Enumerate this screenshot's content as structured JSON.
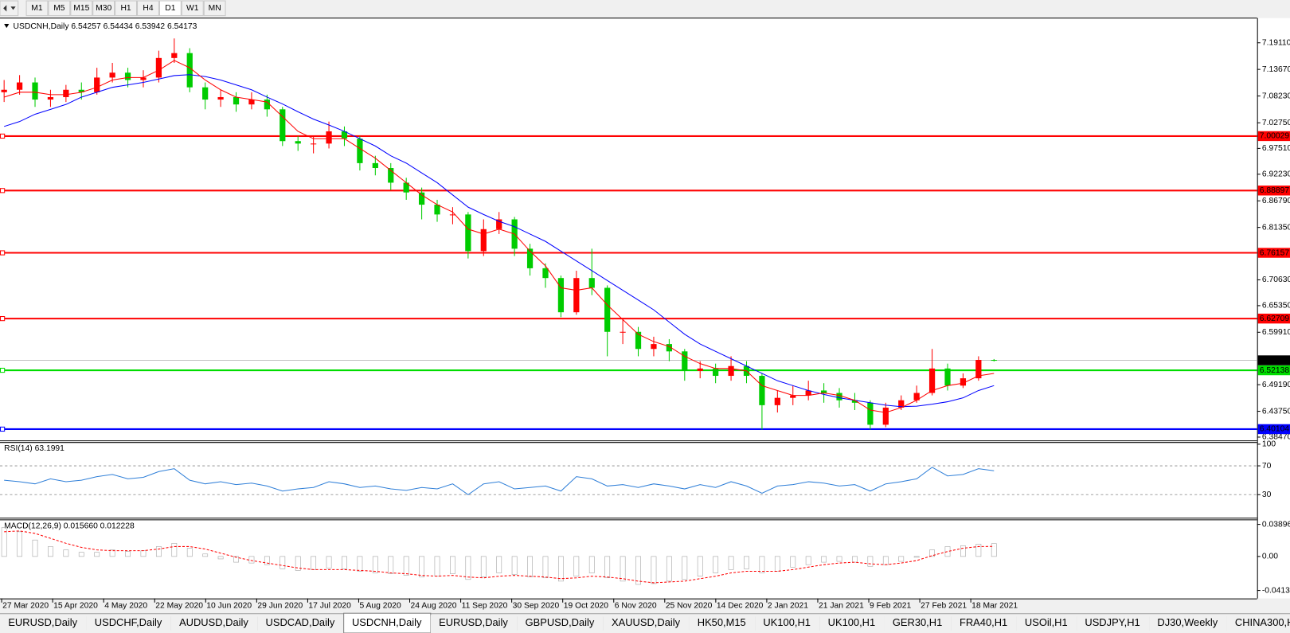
{
  "toolbar": {
    "timeframes": [
      "M1",
      "M5",
      "M15",
      "M30",
      "H1",
      "H4",
      "D1",
      "W1",
      "MN"
    ]
  },
  "tabs": {
    "items": [
      "EURUSD,Daily",
      "USDCHF,Daily",
      "AUDUSD,Daily",
      "USDCAD,Daily",
      "USDCNH,Daily",
      "EURUSD,Daily",
      "GBPUSD,Daily",
      "XAUUSD,Daily",
      "HK50,M15",
      "UK100,H1",
      "UK100,H1",
      "GER30,H1",
      "FRA40,H1",
      "USOil,H1",
      "USDJPY,H1",
      "DJ30,Weekly",
      "CHINA300,H1"
    ],
    "active": 4
  },
  "chart_data": [
    {
      "type": "candlestick",
      "symbol": "USDCNH,Daily",
      "open": [
        7.09,
        7.095,
        7.11,
        7.075,
        7.08,
        7.095,
        7.09,
        7.12,
        7.13,
        7.115,
        7.12,
        7.16,
        7.17,
        7.1,
        7.075,
        7.08,
        7.065,
        7.075,
        7.055,
        6.99,
        6.985,
        6.985,
        7.01,
        6.995,
        6.945,
        6.935,
        6.905,
        6.885,
        6.86,
        6.84,
        6.84,
        6.765,
        6.81,
        6.83,
        6.77,
        6.73,
        6.71,
        6.64,
        6.71,
        6.69,
        6.6,
        6.6,
        6.565,
        6.575,
        6.56,
        6.52,
        6.525,
        6.51,
        6.53,
        6.51,
        6.45,
        6.465,
        6.47,
        6.48,
        6.475,
        6.46,
        6.455,
        6.41,
        6.445,
        6.46,
        6.475,
        6.525,
        6.49,
        6.505,
        6.54257
      ],
      "high": [
        7.115,
        7.125,
        7.12,
        7.095,
        7.105,
        7.11,
        7.14,
        7.15,
        7.14,
        7.135,
        7.175,
        7.2,
        7.18,
        7.11,
        7.095,
        7.09,
        7.09,
        7.085,
        7.06,
        7.0,
        7.0,
        7.03,
        7.02,
        7.0,
        6.96,
        6.945,
        6.915,
        6.895,
        6.87,
        6.855,
        6.845,
        6.83,
        6.845,
        6.835,
        6.78,
        6.74,
        6.715,
        6.725,
        6.77,
        6.695,
        6.625,
        6.61,
        6.59,
        6.585,
        6.565,
        6.54,
        6.535,
        6.55,
        6.54,
        6.515,
        6.48,
        6.49,
        6.5,
        6.495,
        6.485,
        6.475,
        6.46,
        6.455,
        6.47,
        6.49,
        6.565,
        6.535,
        6.515,
        6.55,
        6.54434
      ],
      "low": [
        7.07,
        7.085,
        7.06,
        7.06,
        7.07,
        7.075,
        7.085,
        7.11,
        7.1,
        7.1,
        7.11,
        7.15,
        7.09,
        7.055,
        7.06,
        7.05,
        7.055,
        7.04,
        6.98,
        6.97,
        6.965,
        6.975,
        6.98,
        6.93,
        6.92,
        6.89,
        6.87,
        6.83,
        6.825,
        6.82,
        6.75,
        6.755,
        6.8,
        6.755,
        6.715,
        6.69,
        6.63,
        6.635,
        6.675,
        6.55,
        6.575,
        6.55,
        6.55,
        6.54,
        6.5,
        6.505,
        6.495,
        6.5,
        6.495,
        6.4,
        6.435,
        6.45,
        6.46,
        6.455,
        6.445,
        6.44,
        6.4,
        6.405,
        6.44,
        6.455,
        6.47,
        6.48,
        6.485,
        6.5,
        6.53942
      ],
      "close": [
        7.095,
        7.11,
        7.075,
        7.08,
        7.095,
        7.09,
        7.12,
        7.13,
        7.115,
        7.12,
        7.16,
        7.17,
        7.1,
        7.075,
        7.08,
        7.065,
        7.075,
        7.055,
        6.99,
        6.985,
        6.985,
        7.01,
        6.995,
        6.945,
        6.935,
        6.905,
        6.885,
        6.86,
        6.84,
        6.84,
        6.765,
        6.81,
        6.83,
        6.77,
        6.73,
        6.71,
        6.64,
        6.71,
        6.69,
        6.6,
        6.6,
        6.565,
        6.575,
        6.56,
        6.52,
        6.525,
        6.51,
        6.53,
        6.51,
        6.45,
        6.465,
        6.47,
        6.48,
        6.475,
        6.46,
        6.455,
        6.41,
        6.445,
        6.46,
        6.475,
        6.525,
        6.49,
        6.505,
        6.5426,
        6.54173
      ],
      "up_color": "#ff0000",
      "down_color": "#00cc00",
      "overlays": [
        {
          "color": "#0000ff",
          "values": [
            7.02,
            7.03,
            7.045,
            7.055,
            7.065,
            7.08,
            7.09,
            7.1,
            7.105,
            7.11,
            7.117,
            7.124,
            7.126,
            7.122,
            7.115,
            7.105,
            7.095,
            7.08,
            7.066,
            7.05,
            7.035,
            7.023,
            7.01,
            6.995,
            6.98,
            6.96,
            6.945,
            6.925,
            6.905,
            6.88,
            6.855,
            6.84,
            6.826,
            6.815,
            6.8,
            6.785,
            6.765,
            6.745,
            6.725,
            6.705,
            6.685,
            6.665,
            6.645,
            6.62,
            6.595,
            6.575,
            6.56,
            6.545,
            6.53,
            6.515,
            6.5,
            6.49,
            6.48,
            6.472,
            6.465,
            6.46,
            6.455,
            6.45,
            6.447,
            6.448,
            6.452,
            6.457,
            6.465,
            6.48,
            6.49
          ]
        },
        {
          "color": "#ff0000",
          "values": [
            7.08,
            7.09,
            7.09,
            7.085,
            7.085,
            7.09,
            7.1,
            7.115,
            7.12,
            7.12,
            7.135,
            7.155,
            7.14,
            7.115,
            7.095,
            7.08,
            7.075,
            7.07,
            7.04,
            7.01,
            6.995,
            6.995,
            6.995,
            6.975,
            6.955,
            6.93,
            6.905,
            6.88,
            6.86,
            6.845,
            6.81,
            6.8,
            6.81,
            6.8,
            6.765,
            6.735,
            6.69,
            6.685,
            6.69,
            6.655,
            6.625,
            6.595,
            6.58,
            6.57,
            6.55,
            6.535,
            6.525,
            6.525,
            6.52,
            6.49,
            6.48,
            6.47,
            6.47,
            6.475,
            6.47,
            6.46,
            6.44,
            6.435,
            6.445,
            6.46,
            6.48,
            6.49,
            6.495,
            6.51,
            6.515
          ]
        }
      ],
      "levels": [
        {
          "value": 7.00029,
          "color": "#ff0000"
        },
        {
          "value": 6.88897,
          "color": "#ff0000"
        },
        {
          "value": 6.76157,
          "color": "#ff0000"
        },
        {
          "value": 6.62709,
          "color": "#ff0000"
        },
        {
          "value": 6.52138,
          "color": "#00dd00"
        },
        {
          "value": 6.40104,
          "color": "#0000ff"
        }
      ],
      "ylim": [
        6.378,
        7.2382
      ],
      "yticks": [
        {
          "value": 7.1911,
          "label": "7.19110"
        },
        {
          "value": 7.1367,
          "label": "7.13670"
        },
        {
          "value": 7.0823,
          "label": "7.08230"
        },
        {
          "value": 7.0275,
          "label": "7.02750"
        },
        {
          "value": 6.9751,
          "label": "6.97510"
        },
        {
          "value": 6.9223,
          "label": "6.92230"
        },
        {
          "value": 6.8679,
          "label": "6.86790"
        },
        {
          "value": 6.8135,
          "label": "6.81350"
        },
        {
          "value": 6.7063,
          "label": "6.70630"
        },
        {
          "value": 6.6535,
          "label": "6.65350"
        },
        {
          "value": 6.5991,
          "label": "6.59910"
        },
        {
          "value": 6.4919,
          "label": "6.49190"
        },
        {
          "value": 6.4375,
          "label": "6.43750"
        },
        {
          "value": 6.3847,
          "label": "6.38470"
        }
      ],
      "date_labels": [
        "27 Mar 2020",
        "15 Apr 2020",
        "4 May 2020",
        "22 May 2020",
        "10 Jun 2020",
        "29 Jun 2020",
        "17 Jul 2020",
        "5 Aug 2020",
        "24 Aug 2020",
        "11 Sep 2020",
        "30 Sep 2020",
        "19 Oct 2020",
        "6 Nov 2020",
        "25 Nov 2020",
        "14 Dec 2020",
        "2 Jan 2021",
        "21 Jan 2021",
        "9 Feb 2021",
        "27 Feb 2021",
        "18 Mar 2021"
      ]
    },
    {
      "type": "line",
      "title": "RSI(14) 63.1991",
      "color": "#2f7fd8",
      "values": [
        50,
        48,
        45,
        52,
        48,
        50,
        55,
        58,
        52,
        54,
        62,
        66,
        50,
        45,
        48,
        44,
        46,
        42,
        35,
        38,
        40,
        48,
        45,
        40,
        42,
        38,
        36,
        40,
        38,
        45,
        30,
        45,
        48,
        38,
        40,
        42,
        35,
        55,
        52,
        42,
        44,
        40,
        45,
        42,
        38,
        44,
        40,
        48,
        42,
        32,
        42,
        44,
        48,
        46,
        42,
        44,
        35,
        45,
        48,
        52,
        68,
        56,
        58,
        66,
        63.1991
      ],
      "ylim": [
        -2,
        103
      ],
      "yticks": [
        30,
        70,
        100
      ],
      "levels": [
        30,
        70
      ]
    },
    {
      "type": "macd",
      "title": "MACD(12,26,9) 0.015660 0.012228",
      "hist_color": "#a8a8a8",
      "signal_color": "#ff0000",
      "histogram": [
        0.035,
        0.03,
        0.02,
        0.012,
        0.008,
        0.005,
        0.005,
        0.008,
        0.006,
        0.007,
        0.012,
        0.016,
        0.01,
        0.003,
        -0.003,
        -0.007,
        -0.008,
        -0.01,
        -0.015,
        -0.017,
        -0.016,
        -0.014,
        -0.015,
        -0.018,
        -0.02,
        -0.021,
        -0.023,
        -0.025,
        -0.024,
        -0.021,
        -0.028,
        -0.025,
        -0.02,
        -0.022,
        -0.025,
        -0.026,
        -0.03,
        -0.024,
        -0.02,
        -0.026,
        -0.03,
        -0.034,
        -0.033,
        -0.03,
        -0.028,
        -0.024,
        -0.02,
        -0.016,
        -0.015,
        -0.02,
        -0.018,
        -0.013,
        -0.01,
        -0.007,
        -0.006,
        -0.007,
        -0.012,
        -0.01,
        -0.006,
        -0.001,
        0.008,
        0.012,
        0.013,
        0.015,
        0.01566
      ],
      "signal": [
        0.03,
        0.031,
        0.028,
        0.022,
        0.016,
        0.011,
        0.008,
        0.007,
        0.007,
        0.007,
        0.009,
        0.012,
        0.012,
        0.009,
        0.004,
        -0.001,
        -0.005,
        -0.008,
        -0.011,
        -0.014,
        -0.016,
        -0.016,
        -0.016,
        -0.017,
        -0.018,
        -0.02,
        -0.021,
        -0.023,
        -0.024,
        -0.023,
        -0.025,
        -0.026,
        -0.024,
        -0.023,
        -0.024,
        -0.025,
        -0.027,
        -0.026,
        -0.024,
        -0.025,
        -0.027,
        -0.03,
        -0.032,
        -0.031,
        -0.03,
        -0.027,
        -0.024,
        -0.02,
        -0.018,
        -0.018,
        -0.018,
        -0.016,
        -0.013,
        -0.01,
        -0.008,
        -0.007,
        -0.009,
        -0.01,
        -0.008,
        -0.005,
        0.001,
        0.006,
        0.01,
        0.012,
        0.012228
      ],
      "ylim": [
        -0.051,
        0.045
      ],
      "yticks": [
        0.038962,
        {
          "value": 0,
          "label": "0.00"
        },
        -0.041322
      ]
    }
  ]
}
